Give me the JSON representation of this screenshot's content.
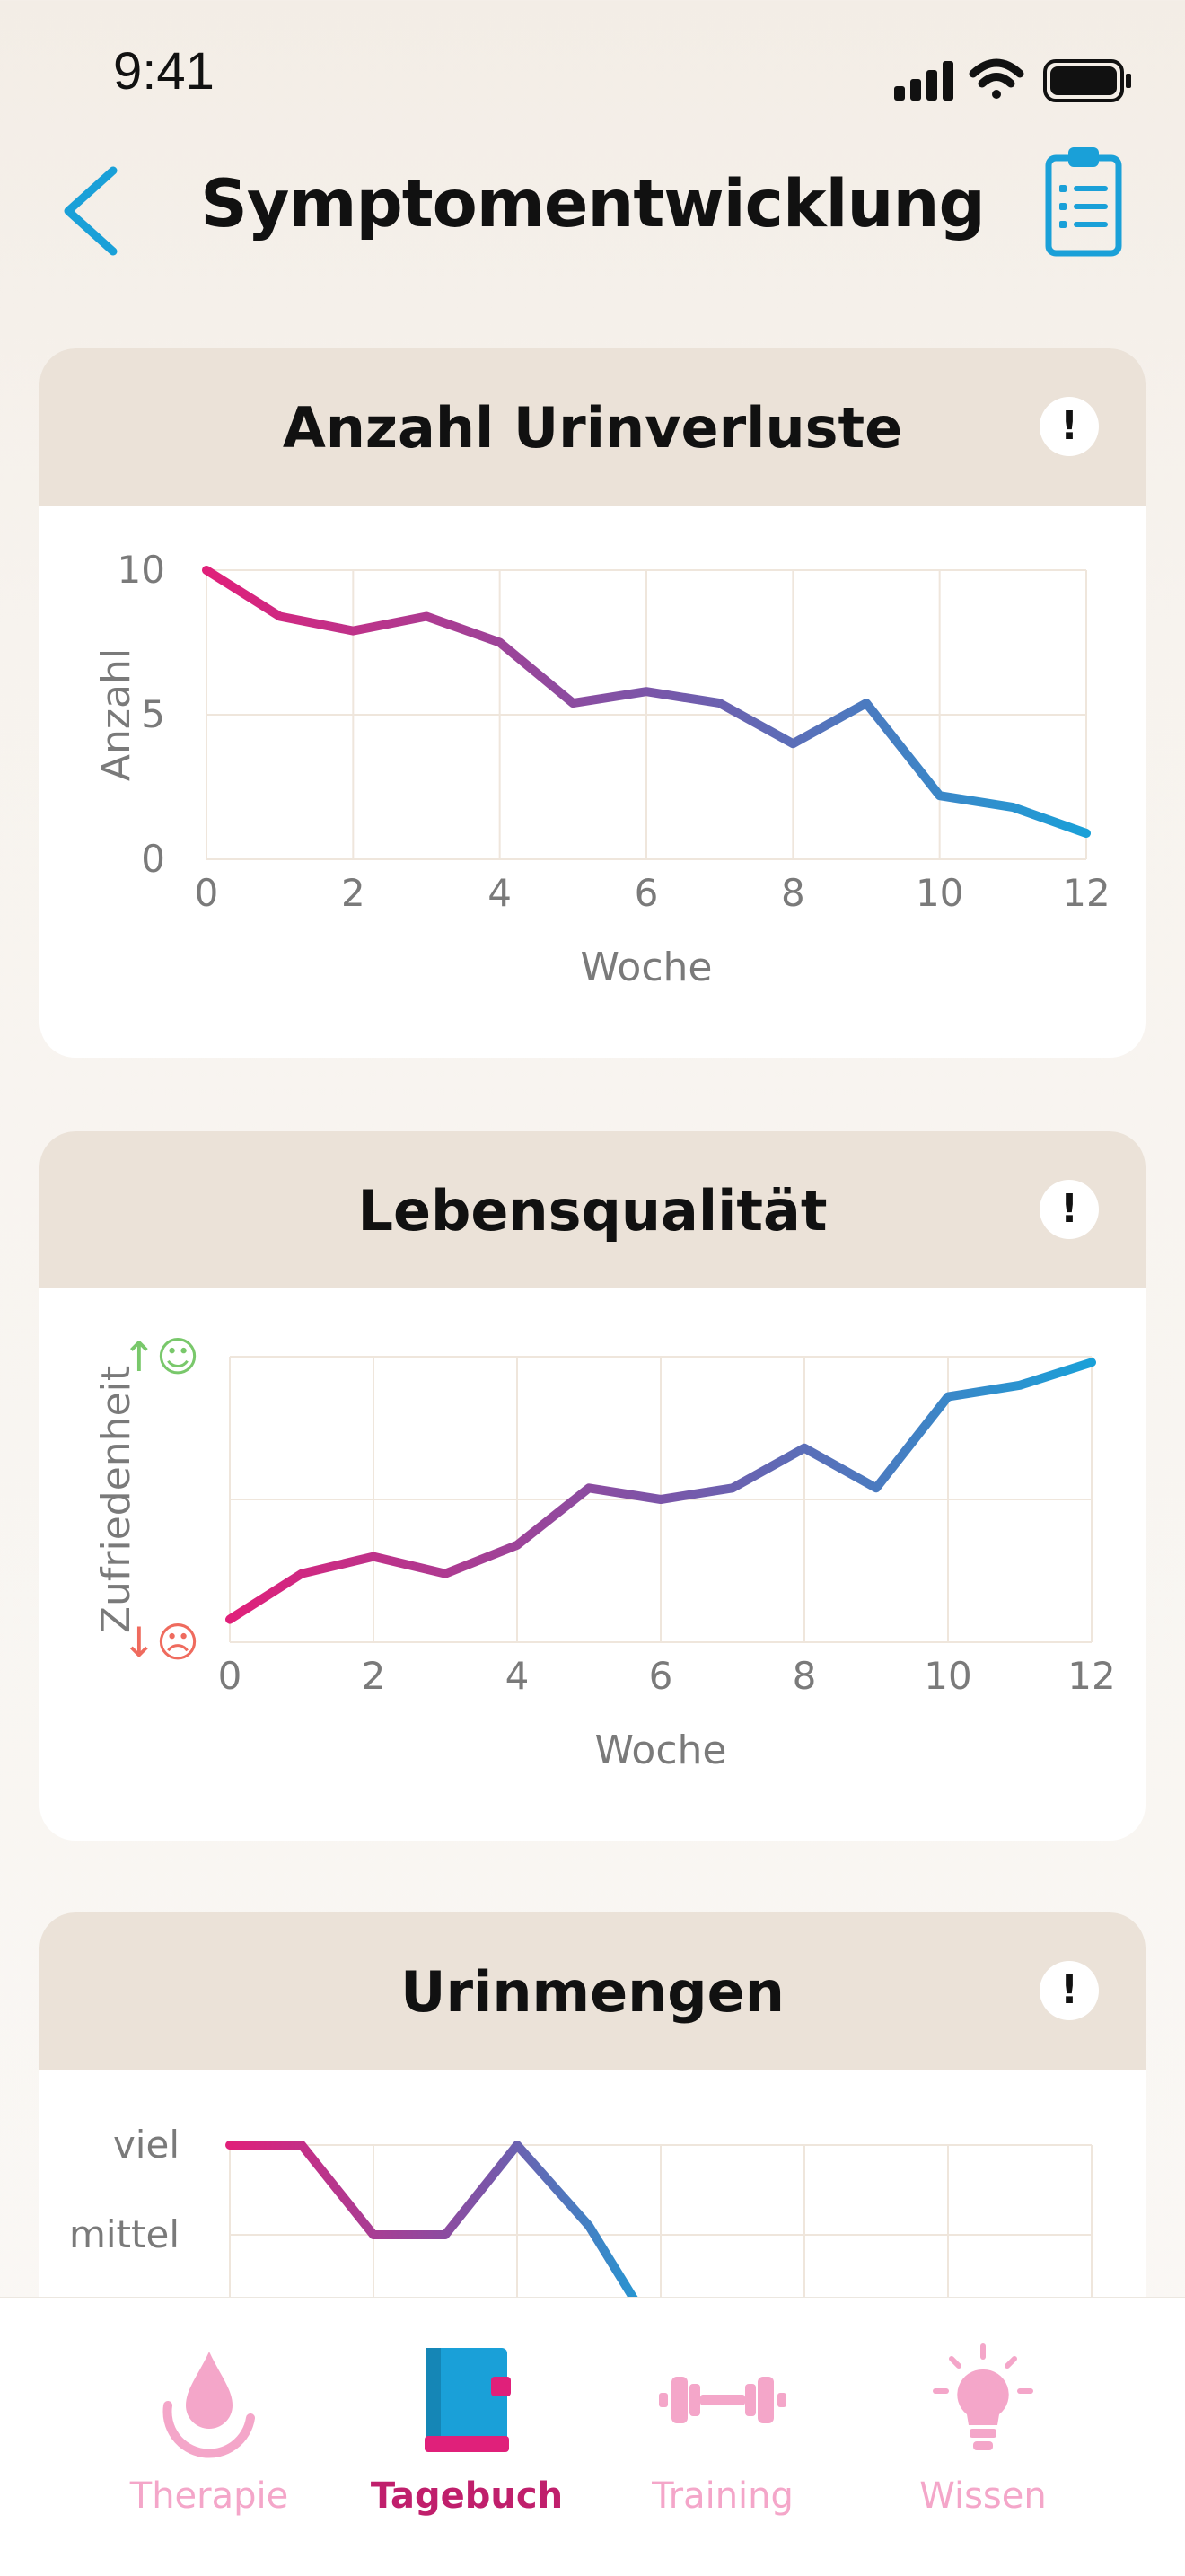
{
  "status": {
    "time": "9:41"
  },
  "header": {
    "title": "Symptomentwicklung"
  },
  "cards": [
    {
      "title": "Anzahl Urinverluste",
      "info": "!",
      "chart_data": {
        "type": "line",
        "xlabel": "Woche",
        "ylabel": "Anzahl",
        "x_ticks": [
          "0",
          "2",
          "4",
          "6",
          "8",
          "10",
          "12"
        ],
        "y_ticks": [
          "0",
          "5",
          "10"
        ],
        "xlim": [
          0,
          12
        ],
        "ylim": [
          0,
          10
        ],
        "x": [
          0,
          1,
          2,
          3,
          4,
          5,
          6,
          7,
          8,
          9,
          10,
          11,
          12
        ],
        "y": [
          10,
          8.4,
          7.9,
          8.4,
          7.5,
          5.4,
          5.8,
          5.4,
          4,
          5.4,
          2.2,
          1.8,
          0.9
        ]
      }
    },
    {
      "title": "Lebensqualität",
      "info": "!",
      "chart_data": {
        "type": "line",
        "xlabel": "Woche",
        "ylabel": "Zufriedenheit",
        "x_ticks": [
          "0",
          "2",
          "4",
          "6",
          "8",
          "10",
          "12"
        ],
        "y_tick_top": "↑☺",
        "y_tick_bottom": "↓☹",
        "xlim": [
          0,
          12
        ],
        "ylim": [
          0,
          10
        ],
        "x": [
          0,
          1,
          2,
          3,
          4,
          5,
          6,
          7,
          8,
          9,
          10,
          11,
          12
        ],
        "y": [
          0.8,
          2.4,
          3,
          2.4,
          3.4,
          5.4,
          5,
          5.4,
          6.8,
          5.4,
          8.6,
          9,
          9.8
        ]
      }
    },
    {
      "title": "Urinmengen",
      "info": "!",
      "chart_data": {
        "type": "line",
        "y_categories": [
          "viel",
          "mittel"
        ],
        "x": [
          0,
          1,
          2,
          3,
          4,
          5,
          6
        ],
        "y": [
          3,
          3,
          2,
          2,
          3,
          2.1,
          0.8
        ]
      }
    }
  ],
  "tabs": [
    {
      "label": "Therapie",
      "icon": "drop-icon",
      "active": false
    },
    {
      "label": "Tagebuch",
      "icon": "book-icon",
      "active": true
    },
    {
      "label": "Training",
      "icon": "dumbbell-icon",
      "active": false
    },
    {
      "label": "Wissen",
      "icon": "bulb-icon",
      "active": false
    }
  ],
  "colors": {
    "gradient_start": "#e0207a",
    "gradient_mid": "#7b55a8",
    "gradient_end": "#1aa0d8",
    "accent": "#1aa0d8",
    "tab_active": "#c01f6c",
    "tab_inactive": "#f4a6c9"
  }
}
